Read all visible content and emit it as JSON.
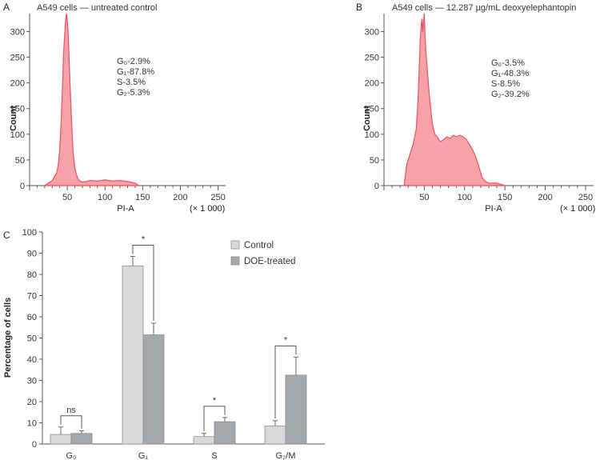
{
  "chart_data": [
    {
      "type": "area",
      "panel": "A",
      "title": "A549 cells — untreated control",
      "xlabel": "PI-A",
      "x_unit": "(× 1 000)",
      "ylabel": "Count",
      "xlim": [
        0,
        260
      ],
      "ylim": [
        0,
        335
      ],
      "x_ticks": [
        50,
        100,
        150,
        200,
        250
      ],
      "y_ticks": [
        0,
        50,
        100,
        150,
        200,
        250,
        300
      ],
      "color": "#e8525f",
      "fill_color": "#f7a1a8",
      "x": [
        20,
        25,
        30,
        33,
        36,
        38,
        40,
        42,
        44,
        45,
        46,
        47,
        48,
        49,
        50,
        51,
        52,
        53,
        54,
        55,
        56,
        57,
        58,
        60,
        62,
        64,
        66,
        70,
        75,
        80,
        90,
        100,
        110,
        120,
        130,
        140,
        145
      ],
      "y": [
        0,
        5,
        10,
        18,
        25,
        40,
        70,
        130,
        210,
        255,
        280,
        305,
        325,
        335,
        322,
        300,
        265,
        225,
        185,
        150,
        115,
        85,
        60,
        35,
        22,
        14,
        10,
        7,
        8,
        10,
        9,
        11,
        9,
        10,
        8,
        5,
        0
      ],
      "stats": [
        "G₀-2.9%",
        "G₁-87.8%",
        "S-3.5%",
        "G₂-5.3%"
      ]
    },
    {
      "type": "area",
      "panel": "B",
      "title": "A549 cells — 12.287 µg/mL deoxyelephantopin",
      "xlabel": "PI-A",
      "x_unit": "(× 1 000)",
      "ylabel": "Count",
      "xlim": [
        0,
        260
      ],
      "ylim": [
        0,
        335
      ],
      "x_ticks": [
        50,
        100,
        150,
        200,
        250
      ],
      "y_ticks": [
        0,
        50,
        100,
        150,
        200,
        250,
        300
      ],
      "color": "#e8525f",
      "fill_color": "#f7a1a8",
      "x": [
        25,
        28,
        32,
        36,
        40,
        42,
        44,
        45,
        46,
        47,
        48,
        49,
        50,
        51,
        52,
        54,
        56,
        58,
        60,
        63,
        66,
        70,
        74,
        78,
        82,
        86,
        90,
        94,
        98,
        102,
        106,
        110,
        114,
        118,
        122,
        126,
        130,
        140,
        150
      ],
      "y": [
        0,
        40,
        60,
        80,
        110,
        160,
        240,
        285,
        310,
        325,
        300,
        320,
        335,
        290,
        260,
        220,
        180,
        150,
        120,
        100,
        95,
        85,
        90,
        95,
        92,
        98,
        95,
        98,
        95,
        90,
        80,
        70,
        55,
        35,
        15,
        8,
        5,
        5,
        0
      ],
      "stats": [
        "G₀-3.5%",
        "G₁-48.3%",
        "S-8.5%",
        "G₂-39.2%"
      ]
    },
    {
      "type": "bar",
      "panel": "C",
      "categories": [
        "G₀",
        "G₁",
        "S",
        "G₂/M"
      ],
      "ylabel": "Percentage of cells",
      "ylim": [
        0,
        100
      ],
      "y_ticks": [
        0,
        10,
        20,
        30,
        40,
        50,
        60,
        70,
        80,
        90,
        100
      ],
      "series": [
        {
          "name": "Control",
          "color": "#d7d9db",
          "values": [
            4.5,
            84,
            3.5,
            8.5
          ],
          "errors": [
            3.5,
            4.5,
            1.5,
            2.5
          ]
        },
        {
          "name": "DOE-treated",
          "color": "#a4a7ab",
          "values": [
            5,
            51.5,
            10.5,
            32.5
          ],
          "errors": [
            1.2,
            5.5,
            2.0,
            8.5
          ]
        }
      ],
      "significance": [
        "ns",
        "*",
        "*",
        "*"
      ]
    }
  ]
}
